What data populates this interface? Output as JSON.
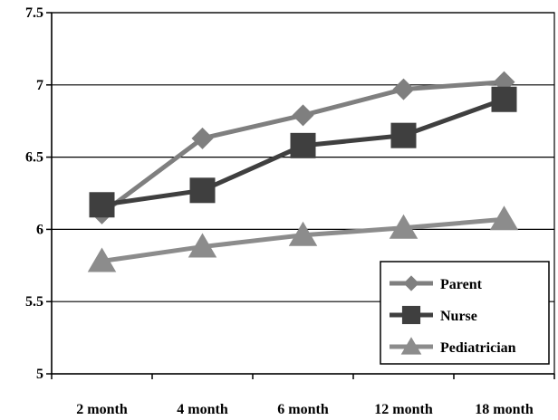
{
  "chart_data": {
    "type": "line",
    "title": "",
    "xlabel": "",
    "ylabel": "",
    "categories": [
      "2 month",
      "4 month",
      "6 month",
      "12 month",
      "18 month"
    ],
    "ylim": [
      5,
      7.5
    ],
    "yticks": [
      5,
      5.5,
      6,
      6.5,
      7,
      7.5
    ],
    "ytick_labels": [
      "5",
      "5.5",
      "6",
      "6.5",
      "7",
      "7.5"
    ],
    "grid": true,
    "legend_position": "bottom-right",
    "series": [
      {
        "name": "Parent",
        "marker": "diamond",
        "color": "#7f7f7f",
        "values": [
          6.11,
          6.63,
          6.79,
          6.97,
          7.02
        ]
      },
      {
        "name": "Nurse",
        "marker": "square",
        "color": "#3f3f3f",
        "values": [
          6.17,
          6.27,
          6.58,
          6.65,
          6.9
        ]
      },
      {
        "name": "Pediatrician",
        "marker": "triangle",
        "color": "#8c8c8c",
        "values": [
          5.78,
          5.88,
          5.96,
          6.01,
          6.07
        ]
      }
    ]
  }
}
